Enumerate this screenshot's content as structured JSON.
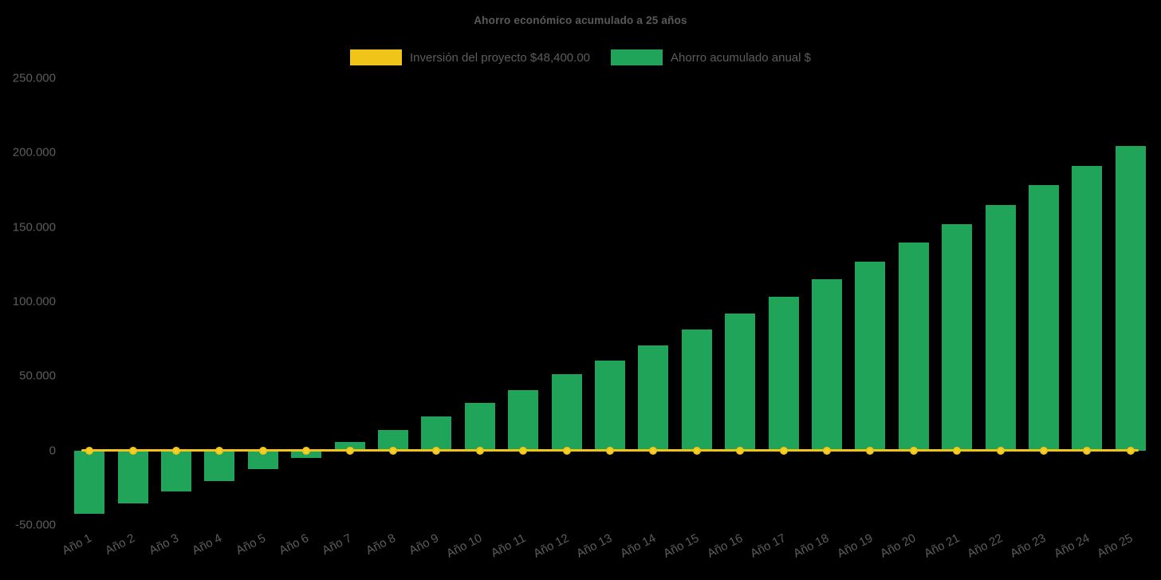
{
  "chart_data": {
    "type": "bar",
    "title": "Ahorro económico acumulado a 25 años",
    "categories": [
      "Año 1",
      "Año 2",
      "Año 3",
      "Año 4",
      "Año 5",
      "Año 6",
      "Año 7",
      "Año 8",
      "Año 9",
      "Año 10",
      "Año 11",
      "Año 12",
      "Año 13",
      "Año 14",
      "Año 15",
      "Año 16",
      "Año 17",
      "Año 18",
      "Año 19",
      "Año 20",
      "Año 21",
      "Año 22",
      "Año 23",
      "Año 24",
      "Año 25"
    ],
    "series": [
      {
        "name": "Inversión del proyecto $48,400.00",
        "type": "line",
        "color": "#f0c419",
        "values": [
          0,
          0,
          0,
          0,
          0,
          0,
          0,
          0,
          0,
          0,
          0,
          0,
          0,
          0,
          0,
          0,
          0,
          0,
          0,
          0,
          0,
          0,
          0,
          0,
          0
        ]
      },
      {
        "name": "Ahorro acumulado anual $",
        "type": "bar",
        "color": "#20a45a",
        "values": [
          -42500,
          -35500,
          -27500,
          -20500,
          -12500,
          -5000,
          5500,
          14000,
          23000,
          32000,
          40500,
          51000,
          60500,
          70500,
          81000,
          92000,
          103000,
          115000,
          127000,
          139500,
          152000,
          165000,
          178000,
          191000,
          204500
        ]
      }
    ],
    "ylim": [
      -50000,
      250000
    ],
    "y_ticks": [
      {
        "value": 250000,
        "label": "250.000"
      },
      {
        "value": 200000,
        "label": "200.000"
      },
      {
        "value": 150000,
        "label": "150.000"
      },
      {
        "value": 100000,
        "label": "100.000"
      },
      {
        "value": 50000,
        "label": "50.000"
      },
      {
        "value": 0,
        "label": "0"
      },
      {
        "value": -50000,
        "label": "-50.000"
      }
    ],
    "grid": false,
    "legend_position": "top",
    "x_label_rotation": -27,
    "background_color": "#000000",
    "text_color": "#5d5d5d"
  }
}
